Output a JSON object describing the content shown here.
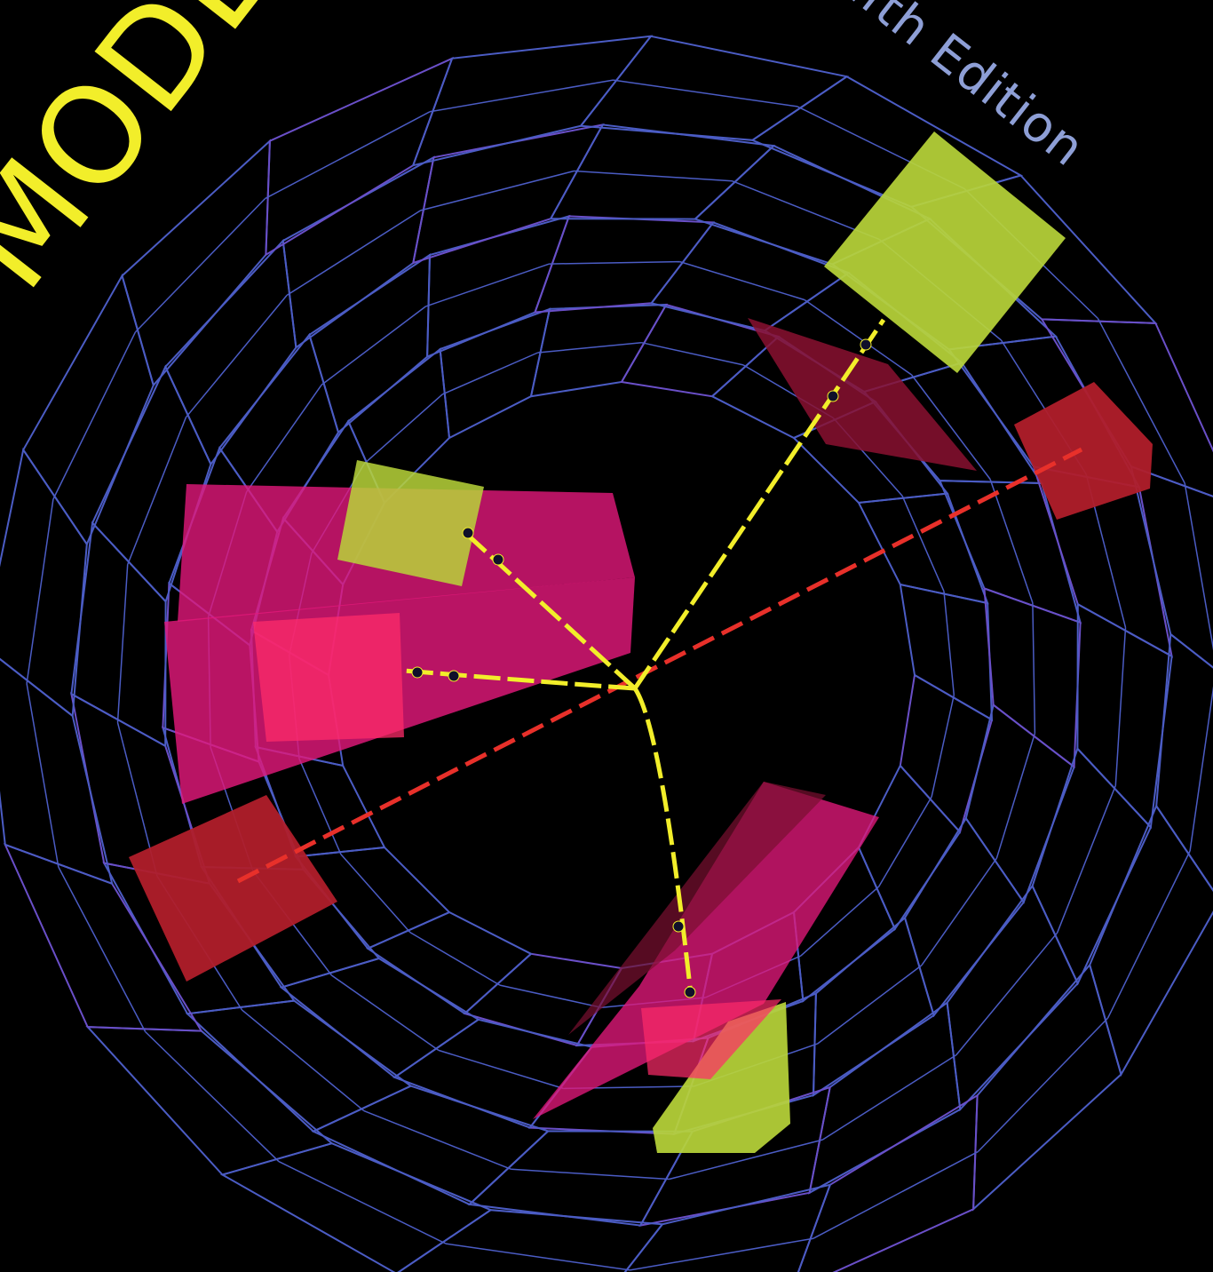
{
  "cover": {
    "title_visible": "MODER",
    "edition": "ifth Edition"
  },
  "colors": {
    "background": "#000000",
    "wireframe": "#4b5cc4",
    "wireframe_alt": "#6a4fc8",
    "green_energy": "#b9d53a",
    "magenta_energy": "#e2187a",
    "red_energy": "#b01e2a",
    "yellow_track": "#f2ee2a",
    "red_track": "#e8302a",
    "title": "#f2ee2a",
    "edition_text": "#8e9fd6"
  }
}
